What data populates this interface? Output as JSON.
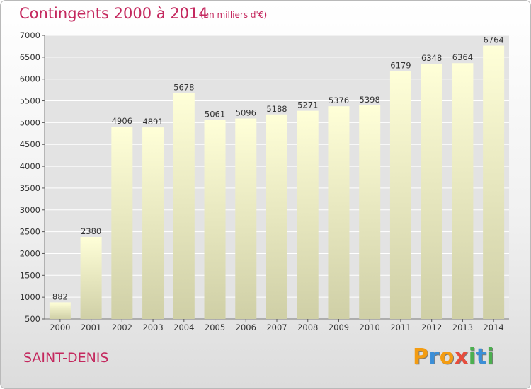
{
  "header": {
    "title": "Contingents 2000 à 2014",
    "subtitle": "(en milliers d'€)"
  },
  "footer": {
    "place": "SAINT-DENIS",
    "brand": {
      "letters": [
        "P",
        "r",
        "o",
        "x",
        "i",
        "t",
        "i"
      ],
      "colors": [
        "#f39c12",
        "#3b8fd8",
        "#f39c12",
        "#e74c3c",
        "#4caf50",
        "#3b8fd8",
        "#4caf50"
      ]
    }
  },
  "chart_data": {
    "type": "bar",
    "title": "Contingents 2000 à 2014",
    "subtitle": "(en milliers d'€)",
    "categories": [
      "2000",
      "2001",
      "2002",
      "2003",
      "2004",
      "2005",
      "2006",
      "2007",
      "2008",
      "2009",
      "2010",
      "2011",
      "2012",
      "2013",
      "2014"
    ],
    "values": [
      882,
      2380,
      4906,
      4891,
      5678,
      5061,
      5096,
      5188,
      5271,
      5376,
      5398,
      6179,
      6348,
      6364,
      6764
    ],
    "yticks": [
      500,
      1000,
      1500,
      2000,
      2500,
      3000,
      3500,
      4000,
      4500,
      5000,
      5500,
      6000,
      6500,
      7000
    ],
    "ylim": [
      500,
      7000
    ],
    "grid": true,
    "colors": {
      "bar_top": "#ffffd8",
      "bar_bottom": "#cfcfa6",
      "grid": "#ffffff",
      "plot_bg": "#e3e3e3"
    }
  }
}
